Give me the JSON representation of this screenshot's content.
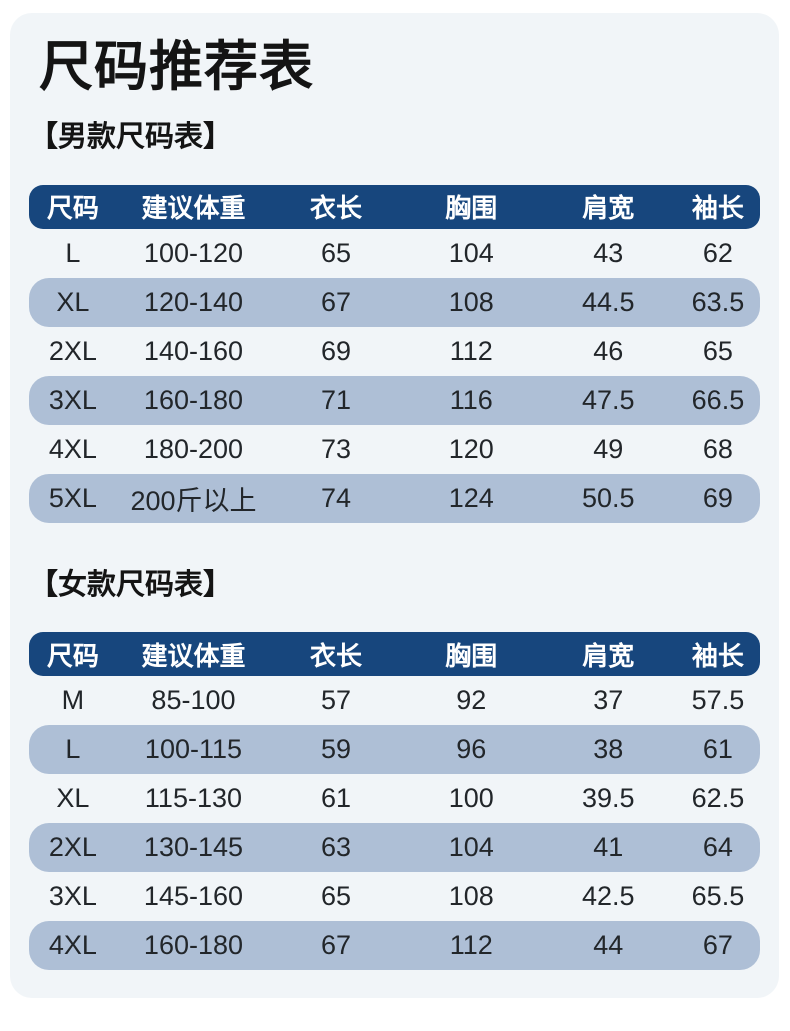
{
  "page": {
    "title": "尺码推荐表",
    "background_color": "#ffffff",
    "card_color": "#f1f5f8",
    "header_color": "#17467d",
    "header_text_color": "#ffffff",
    "row_stripe_color": "#aebfd6",
    "text_color": "#22262a"
  },
  "chart_data": [
    {
      "type": "table",
      "title": "【男款尺码表】",
      "columns": [
        "尺码",
        "建议体重",
        "衣长",
        "胸围",
        "肩宽",
        "袖长"
      ],
      "rows": [
        [
          "L",
          "100-120",
          "65",
          "104",
          "43",
          "62"
        ],
        [
          "XL",
          "120-140",
          "67",
          "108",
          "44.5",
          "63.5"
        ],
        [
          "2XL",
          "140-160",
          "69",
          "112",
          "46",
          "65"
        ],
        [
          "3XL",
          "160-180",
          "71",
          "116",
          "47.5",
          "66.5"
        ],
        [
          "4XL",
          "180-200",
          "73",
          "120",
          "49",
          "68"
        ],
        [
          "5XL",
          "200斤以上",
          "74",
          "124",
          "50.5",
          "69"
        ]
      ]
    },
    {
      "type": "table",
      "title": "【女款尺码表】",
      "columns": [
        "尺码",
        "建议体重",
        "衣长",
        "胸围",
        "肩宽",
        "袖长"
      ],
      "rows": [
        [
          "M",
          "85-100",
          "57",
          "92",
          "37",
          "57.5"
        ],
        [
          "L",
          "100-115",
          "59",
          "96",
          "38",
          "61"
        ],
        [
          "XL",
          "115-130",
          "61",
          "100",
          "39.5",
          "62.5"
        ],
        [
          "2XL",
          "130-145",
          "63",
          "104",
          "41",
          "64"
        ],
        [
          "3XL",
          "145-160",
          "65",
          "108",
          "42.5",
          "65.5"
        ],
        [
          "4XL",
          "160-180",
          "67",
          "112",
          "44",
          "67"
        ]
      ]
    }
  ]
}
